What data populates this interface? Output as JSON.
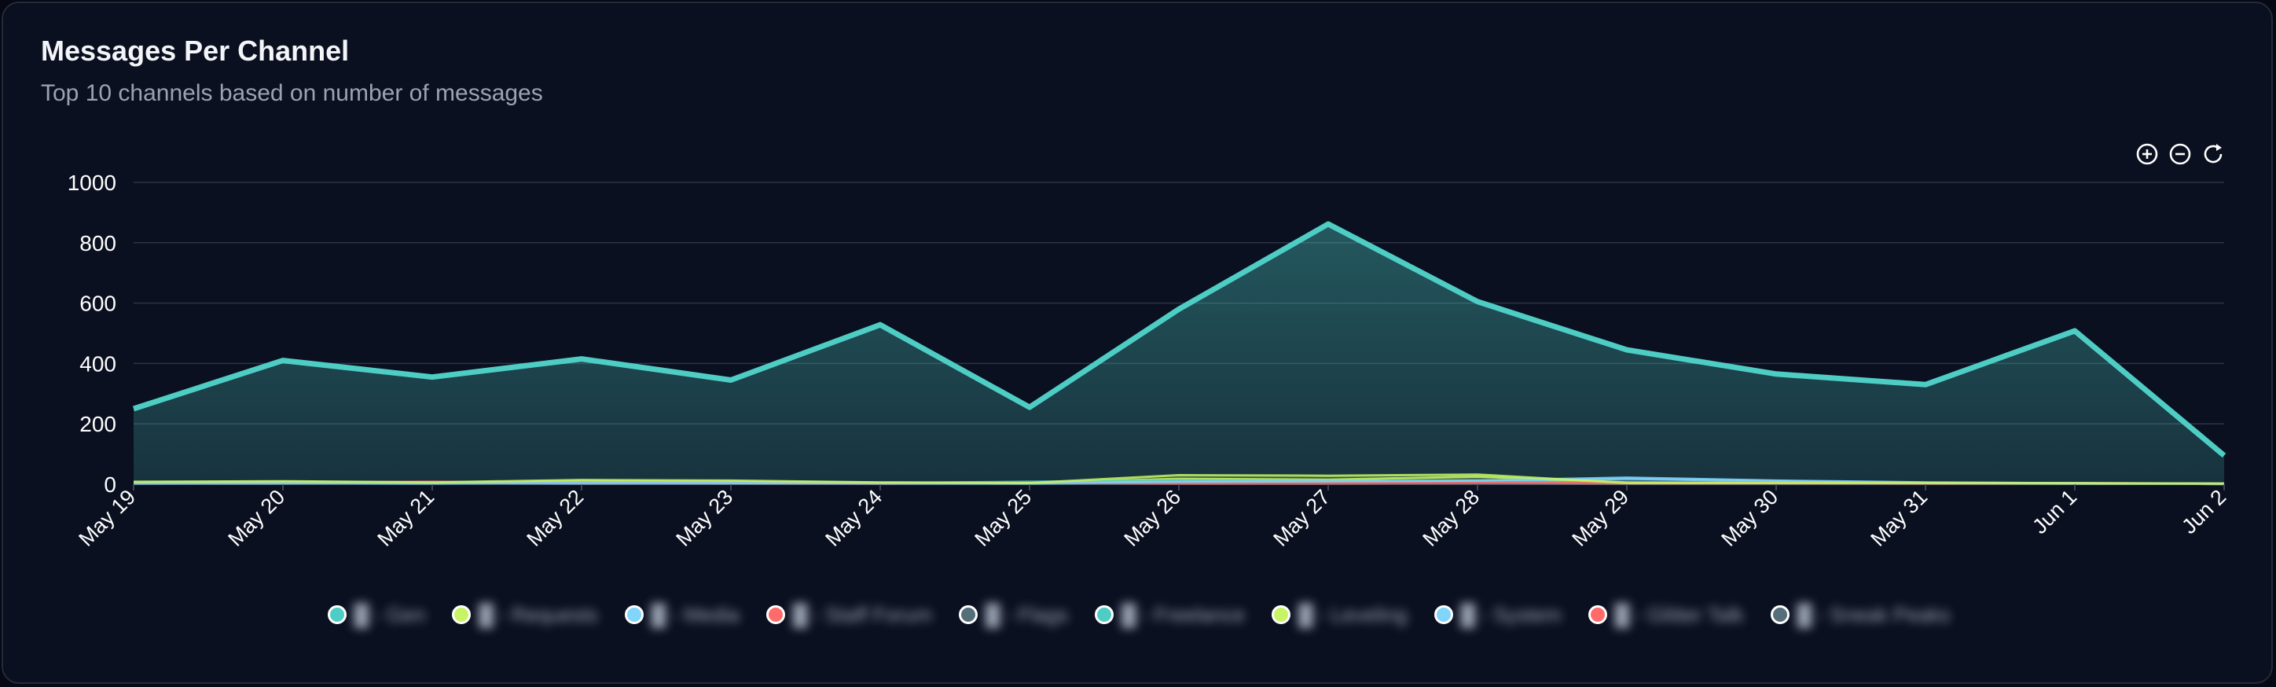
{
  "card": {
    "title": "Messages Per Channel",
    "subtitle": "Top 10 channels based on number of messages"
  },
  "toolbar": {
    "zoom_in_icon": "zoom-in-icon",
    "zoom_out_icon": "zoom-out-icon",
    "reset_icon": "reset-icon"
  },
  "colors": {
    "background": "#0b1020",
    "grid": "#2b3345",
    "text": "#ffffff",
    "muted": "#9aa3b2"
  },
  "chart_data": {
    "type": "area",
    "categories": [
      "May 19",
      "May 20",
      "May 21",
      "May 22",
      "May 23",
      "May 24",
      "May 25",
      "May 26",
      "May 27",
      "May 28",
      "May 29",
      "May 30",
      "May 31",
      "Jun 1",
      "Jun 2"
    ],
    "ylim": [
      0,
      1000
    ],
    "y_ticks": [
      "0",
      "200",
      "400",
      "600",
      "800",
      "1000"
    ],
    "grid": true,
    "legend_position": "bottom",
    "series": [
      {
        "name": "█ - Gen",
        "color": "#4ecdc4",
        "values": [
          250,
          410,
          355,
          415,
          345,
          528,
          255,
          580,
          862,
          605,
          445,
          365,
          330,
          508,
          95
        ]
      },
      {
        "name": "█ - Requests",
        "color": "#c7f464",
        "values": [
          8,
          10,
          6,
          14,
          12,
          6,
          4,
          30,
          28,
          32,
          4,
          4,
          4,
          3,
          2
        ]
      },
      {
        "name": "█ - Media",
        "color": "#81d4fa",
        "values": [
          3,
          4,
          3,
          5,
          4,
          3,
          3,
          8,
          10,
          12,
          22,
          12,
          6,
          3,
          2
        ]
      },
      {
        "name": "█ - Staff Forum",
        "color": "#ff6b6b",
        "values": [
          5,
          6,
          8,
          4,
          5,
          3,
          6,
          4,
          5,
          6,
          4,
          5,
          3,
          4,
          2
        ]
      },
      {
        "name": "█ - Flags",
        "color": "#546e7a",
        "values": [
          2,
          2,
          2,
          3,
          2,
          2,
          2,
          3,
          3,
          3,
          2,
          2,
          2,
          2,
          1
        ]
      },
      {
        "name": "█ - Freelance",
        "color": "#4ecdc4",
        "values": [
          4,
          3,
          2,
          6,
          5,
          4,
          8,
          12,
          10,
          9,
          6,
          4,
          3,
          2,
          1
        ]
      },
      {
        "name": "█ - Leveling",
        "color": "#c7f464",
        "values": [
          6,
          8,
          5,
          10,
          8,
          5,
          4,
          18,
          15,
          25,
          6,
          5,
          3,
          2,
          1
        ]
      },
      {
        "name": "█ - System",
        "color": "#81d4fa",
        "values": [
          2,
          2,
          3,
          2,
          2,
          3,
          2,
          5,
          6,
          8,
          18,
          10,
          5,
          3,
          1
        ]
      },
      {
        "name": "█ - Glitter Talk",
        "color": "#ff6b6b",
        "values": [
          3,
          2,
          4,
          3,
          2,
          2,
          3,
          2,
          2,
          3,
          2,
          2,
          2,
          2,
          1
        ]
      },
      {
        "name": "█ - Sneak Peaks",
        "color": "#546e7a",
        "values": [
          1,
          2,
          1,
          2,
          2,
          1,
          1,
          2,
          2,
          2,
          1,
          1,
          1,
          1,
          1
        ]
      }
    ]
  }
}
